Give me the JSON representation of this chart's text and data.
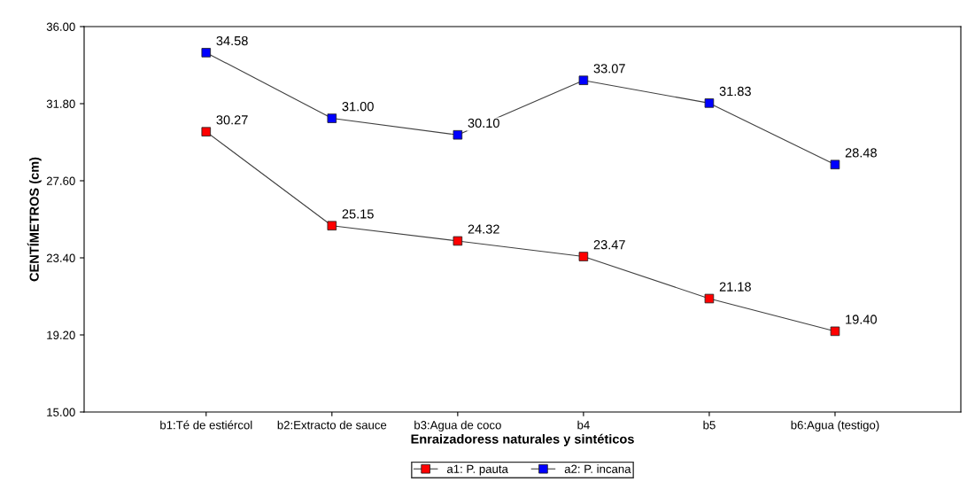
{
  "chart_data": {
    "type": "line",
    "xlabel": "Enraizadoress naturales y sintéticos",
    "ylabel": "CENTÍMETROS (cm)",
    "categories": [
      "b1:Té de estiércol",
      "b2:Extracto de sauce",
      "b3:Agua de coco",
      "b4",
      "b5",
      "b6:Agua (testigo)"
    ],
    "series": [
      {
        "name": "a1: P. pauta",
        "color": "#ff0000",
        "values": [
          30.27,
          25.15,
          24.32,
          23.47,
          21.18,
          19.4
        ],
        "value_labels": [
          "30.27",
          "25.15",
          "24.32",
          "23.47",
          "21.18",
          "19.40"
        ]
      },
      {
        "name": "a2: P. incana",
        "color": "#0000ff",
        "values": [
          34.58,
          31.0,
          30.1,
          33.07,
          31.83,
          28.48
        ],
        "value_labels": [
          "34.58",
          "31.00",
          "30.10",
          "33.07",
          "31.83",
          "28.48"
        ]
      }
    ],
    "ylim": [
      15,
      36
    ],
    "yticks": [
      {
        "value": 15,
        "label": "15.00"
      },
      {
        "value": 19.2,
        "label": "19.20"
      },
      {
        "value": 23.4,
        "label": "23.40"
      },
      {
        "value": 27.6,
        "label": "27.60"
      },
      {
        "value": 31.8,
        "label": "31.80"
      },
      {
        "value": 36,
        "label": "36.00"
      }
    ],
    "grid": false,
    "legend": "bottom",
    "marker": "square",
    "line_style": "solid"
  }
}
